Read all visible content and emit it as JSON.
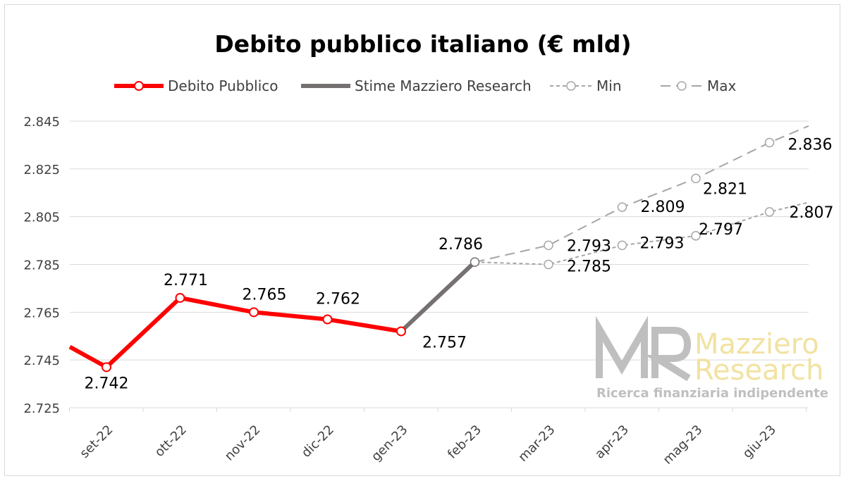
{
  "chart_data": {
    "type": "line",
    "title": "Debito pubblico italiano (€ mld)",
    "categories": [
      "set-22",
      "ott-22",
      "nov-22",
      "dic-22",
      "gen-23",
      "feb-23",
      "mar-23",
      "apr-23",
      "mag-23",
      "giu-23"
    ],
    "ylim": [
      2725,
      2845
    ],
    "yticks": [
      "2.725",
      "2.745",
      "2.765",
      "2.785",
      "2.805",
      "2.825",
      "2.845"
    ],
    "grid": true,
    "legend_position": "top",
    "series": [
      {
        "name": "Debito Pubblico",
        "color": "#ff0000",
        "style": "solid",
        "values": [
          2742,
          2771,
          2765,
          2762,
          2757,
          null,
          null,
          null,
          null,
          null
        ],
        "labels": [
          "2.742",
          "2.771",
          "2.765",
          "2.762",
          "2.757",
          "",
          "",
          "",
          "",
          ""
        ]
      },
      {
        "name": "Stime Mazziero Research",
        "color": "#767171",
        "style": "solid",
        "values": [
          null,
          null,
          null,
          null,
          2757,
          2786,
          null,
          null,
          null,
          null
        ],
        "labels": [
          "",
          "",
          "",
          "",
          "",
          "2.786",
          "",
          "",
          "",
          ""
        ]
      },
      {
        "name": "Min",
        "color": "#a6a6a6",
        "style": "dashed-short",
        "values": [
          null,
          null,
          null,
          null,
          null,
          2786,
          2785,
          2793,
          2797,
          2807
        ],
        "labels": [
          "",
          "",
          "",
          "",
          "",
          "",
          "2.785",
          "2.793",
          "2.797",
          "2.807"
        ]
      },
      {
        "name": "Max",
        "color": "#a6a6a6",
        "style": "dashed-long",
        "values": [
          null,
          null,
          null,
          null,
          null,
          2786,
          2793,
          2809,
          2821,
          2836
        ],
        "labels": [
          "",
          "",
          "",
          "",
          "",
          "",
          "2.793",
          "2.809",
          "2.821",
          "2.836"
        ]
      }
    ]
  },
  "watermark": {
    "logo_letters": "MR",
    "line1": "Mazziero",
    "line2": "Research",
    "tagline": "Ricerca finanziaria indipendente"
  }
}
